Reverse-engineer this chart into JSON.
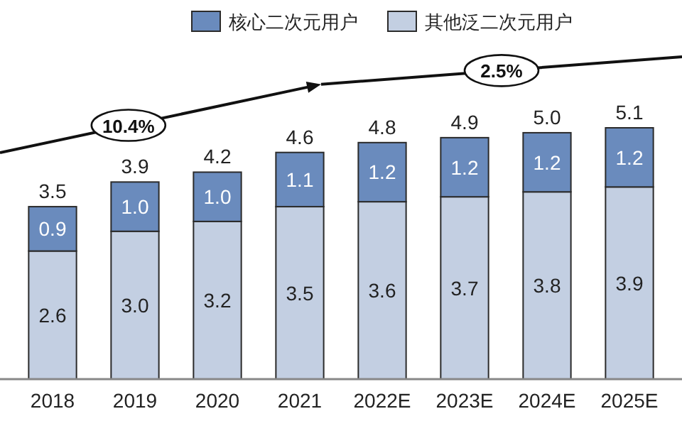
{
  "chart_data": {
    "type": "bar",
    "stacked": true,
    "categories": [
      "2018",
      "2019",
      "2020",
      "2021",
      "2022E",
      "2023E",
      "2024E",
      "2025E"
    ],
    "series": [
      {
        "name": "其他泛二次元用户",
        "color": "#c3cfe2",
        "values": [
          2.6,
          3.0,
          3.2,
          3.5,
          3.6,
          3.7,
          3.8,
          3.9
        ],
        "value_labels": [
          "2.6",
          "3.0",
          "3.2",
          "3.5",
          "3.6",
          "3.7",
          "3.8",
          "3.9"
        ]
      },
      {
        "name": "核心二次元用户",
        "color": "#6a8bbd",
        "values": [
          0.9,
          1.0,
          1.0,
          1.1,
          1.2,
          1.2,
          1.2,
          1.2
        ],
        "value_labels": [
          "0.9",
          "1.0",
          "1.0",
          "1.1",
          "1.2",
          "1.2",
          "1.2",
          "1.2"
        ]
      }
    ],
    "totals": [
      "3.5",
      "3.9",
      "4.2",
      "4.6",
      "4.8",
      "4.9",
      "5.0",
      "5.1"
    ],
    "annotations": [
      "10.4%",
      "2.5%"
    ],
    "legend": "top"
  }
}
